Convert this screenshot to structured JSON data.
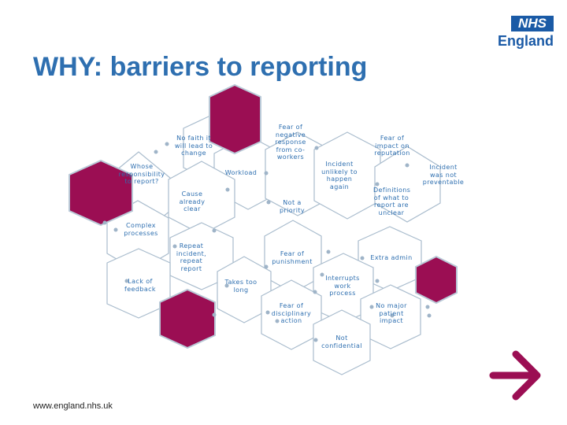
{
  "title": "WHY: barriers to reporting",
  "logo": {
    "box": "NHS",
    "sub": "England"
  },
  "footer": {
    "url": "www.england.nhs.uk"
  },
  "labels": {
    "no_faith": "No faith it will lead to change",
    "fear_negative": "Fear of negative response from co-workers",
    "fear_reputation": "Fear of impact on reputation",
    "whose_responsibility": "Whose responsibility to report?",
    "workload": "Workload",
    "incident_unlikely": "Incident unlikely to happen again",
    "not_preventable": "Incident was not preventable",
    "cause_clear": "Cause already clear",
    "not_priority": "Not a priority",
    "definitions_unclear": "Definitions of what to report are unclear",
    "complex_processes": "Complex processes",
    "repeat_incident": "Repeat incident, repeat report",
    "fear_punishment": "Fear of punishment",
    "extra_admin": "Extra admin",
    "lack_feedback": "Lack of feedback",
    "takes_long": "Takes too long",
    "interrupts_work": "Interrupts work process",
    "fear_disciplinary": "Fear of disciplinary action",
    "no_major_impact": "No major patient impact",
    "not_confidential": "Not confidential"
  },
  "colors": {
    "brand_blue": "#2e6fb0",
    "hex_fill": "#9b0e53",
    "hex_outline": "#9fb4c8",
    "arrow": "#9b0e53"
  }
}
